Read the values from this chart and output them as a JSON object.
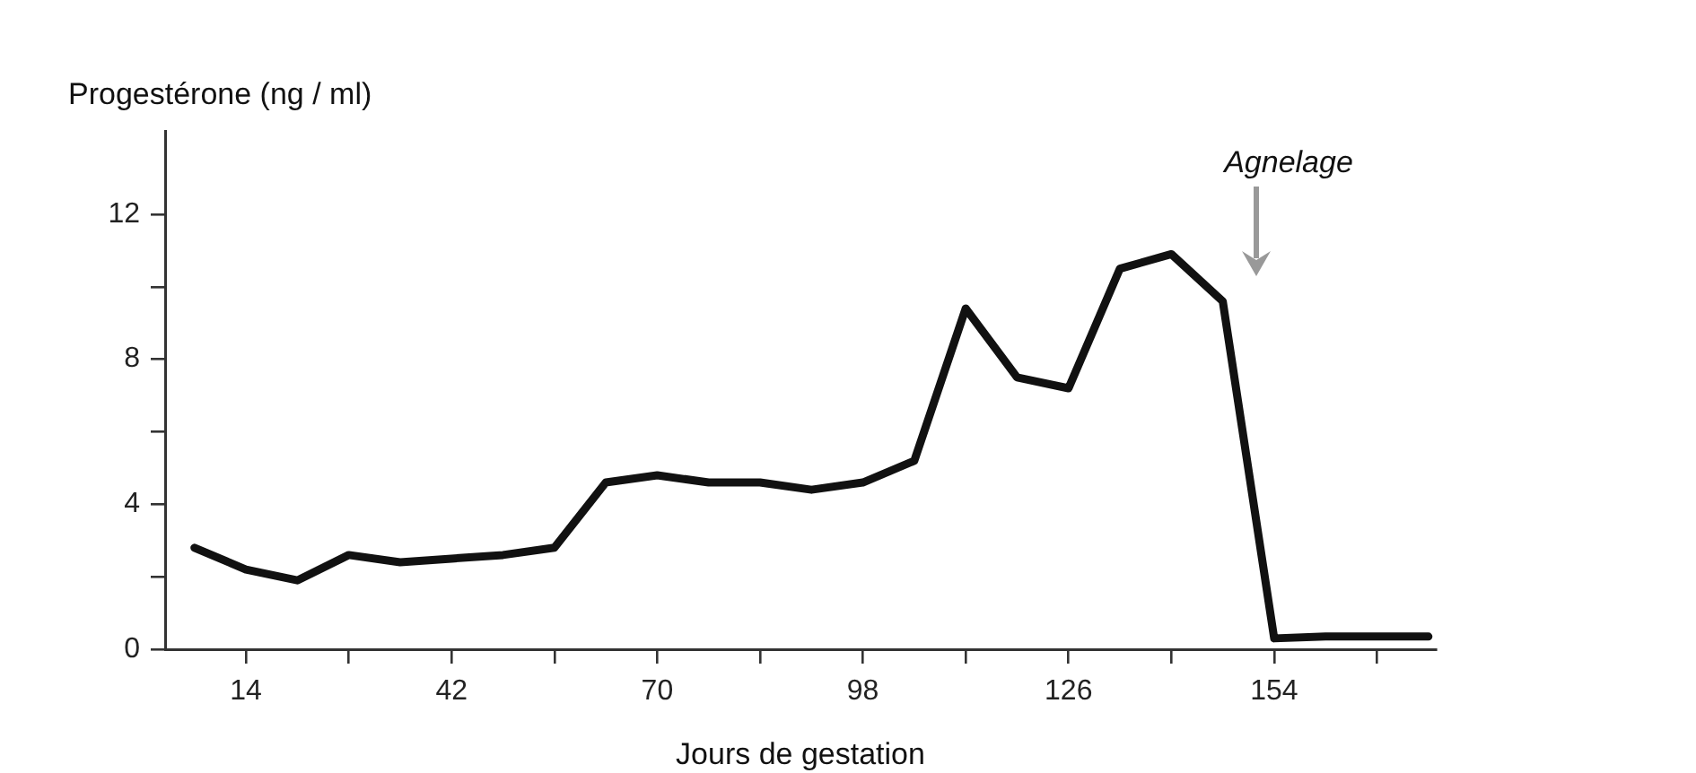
{
  "chart_data": {
    "type": "line",
    "xlabel": "Jours de gestation",
    "ylabel": "Progestérone (ng / ml)",
    "x": [
      7,
      14,
      21,
      28,
      35,
      42,
      49,
      56,
      63,
      70,
      77,
      84,
      91,
      98,
      105,
      112,
      119,
      126,
      133,
      140,
      147,
      154,
      161,
      168,
      175
    ],
    "series": [
      {
        "color": "#111111",
        "values": [
          2.8,
          2.2,
          1.9,
          2.6,
          2.4,
          2.5,
          2.6,
          2.8,
          4.6,
          4.8,
          4.6,
          4.6,
          4.4,
          4.6,
          5.2,
          9.4,
          7.5,
          7.2,
          10.5,
          10.9,
          9.6,
          0.3,
          0.35,
          0.35,
          0.35
        ]
      }
    ],
    "xlim": [
      3,
      176
    ],
    "ylim": [
      0,
      14.3
    ],
    "xticks": [
      14,
      {
        "value": 28,
        "label": null
      },
      42,
      {
        "value": 56,
        "label": null
      },
      70,
      {
        "value": 84,
        "label": null
      },
      98,
      {
        "value": 112,
        "label": null
      },
      126,
      {
        "value": 140,
        "label": null
      },
      154,
      {
        "value": 168,
        "label": null
      }
    ],
    "yticks": [
      0,
      {
        "value": 2,
        "label": null
      },
      4,
      {
        "value": 6,
        "label": null
      },
      8,
      {
        "value": 10,
        "label": null
      },
      12
    ],
    "annotations": [
      "Agnelage"
    ],
    "grid": false,
    "marker": "none",
    "line_style": "solid"
  }
}
